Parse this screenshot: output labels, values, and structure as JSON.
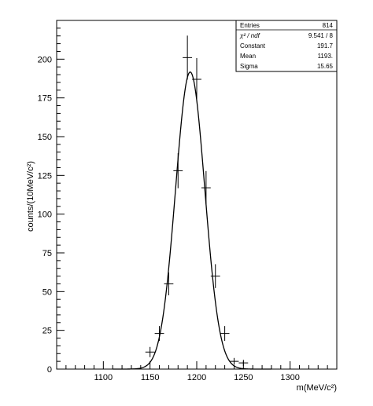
{
  "chart_data": {
    "type": "scatter",
    "title": "",
    "xlabel": "m(MeV/c²)",
    "ylabel": "counts/(10MeV/c²)",
    "xlim": [
      1050,
      1350
    ],
    "ylim": [
      0,
      225
    ],
    "xticks": [
      1100,
      1150,
      1200,
      1250,
      1300
    ],
    "yticks": [
      0,
      25,
      50,
      75,
      100,
      125,
      150,
      175,
      200
    ],
    "grid": false,
    "bin_width": 10,
    "points": [
      {
        "x": 1150,
        "y": 11,
        "err": 3.3
      },
      {
        "x": 1160,
        "y": 23,
        "err": 4.8
      },
      {
        "x": 1170,
        "y": 55,
        "err": 7.4
      },
      {
        "x": 1180,
        "y": 128,
        "err": 11.3
      },
      {
        "x": 1190,
        "y": 201,
        "err": 14.2
      },
      {
        "x": 1200,
        "y": 187,
        "err": 13.7
      },
      {
        "x": 1210,
        "y": 117,
        "err": 10.8
      },
      {
        "x": 1220,
        "y": 60,
        "err": 7.7
      },
      {
        "x": 1230,
        "y": 23,
        "err": 4.8
      },
      {
        "x": 1240,
        "y": 5,
        "err": 2.2
      },
      {
        "x": 1250,
        "y": 4,
        "err": 2.0
      }
    ],
    "fit": {
      "function": "gaussian",
      "constant": 191.7,
      "mean": 1193,
      "sigma": 15.65
    },
    "stats_box": {
      "position": "top-right",
      "rows": [
        {
          "label": "Entries",
          "value": "814"
        },
        {
          "label": "χ² / ndf",
          "value": "9.541   /   8"
        },
        {
          "label": "Constant",
          "value": "191.7"
        },
        {
          "label": "Mean",
          "value": "1193."
        },
        {
          "label": "Sigma",
          "value": "15.65"
        }
      ]
    }
  }
}
